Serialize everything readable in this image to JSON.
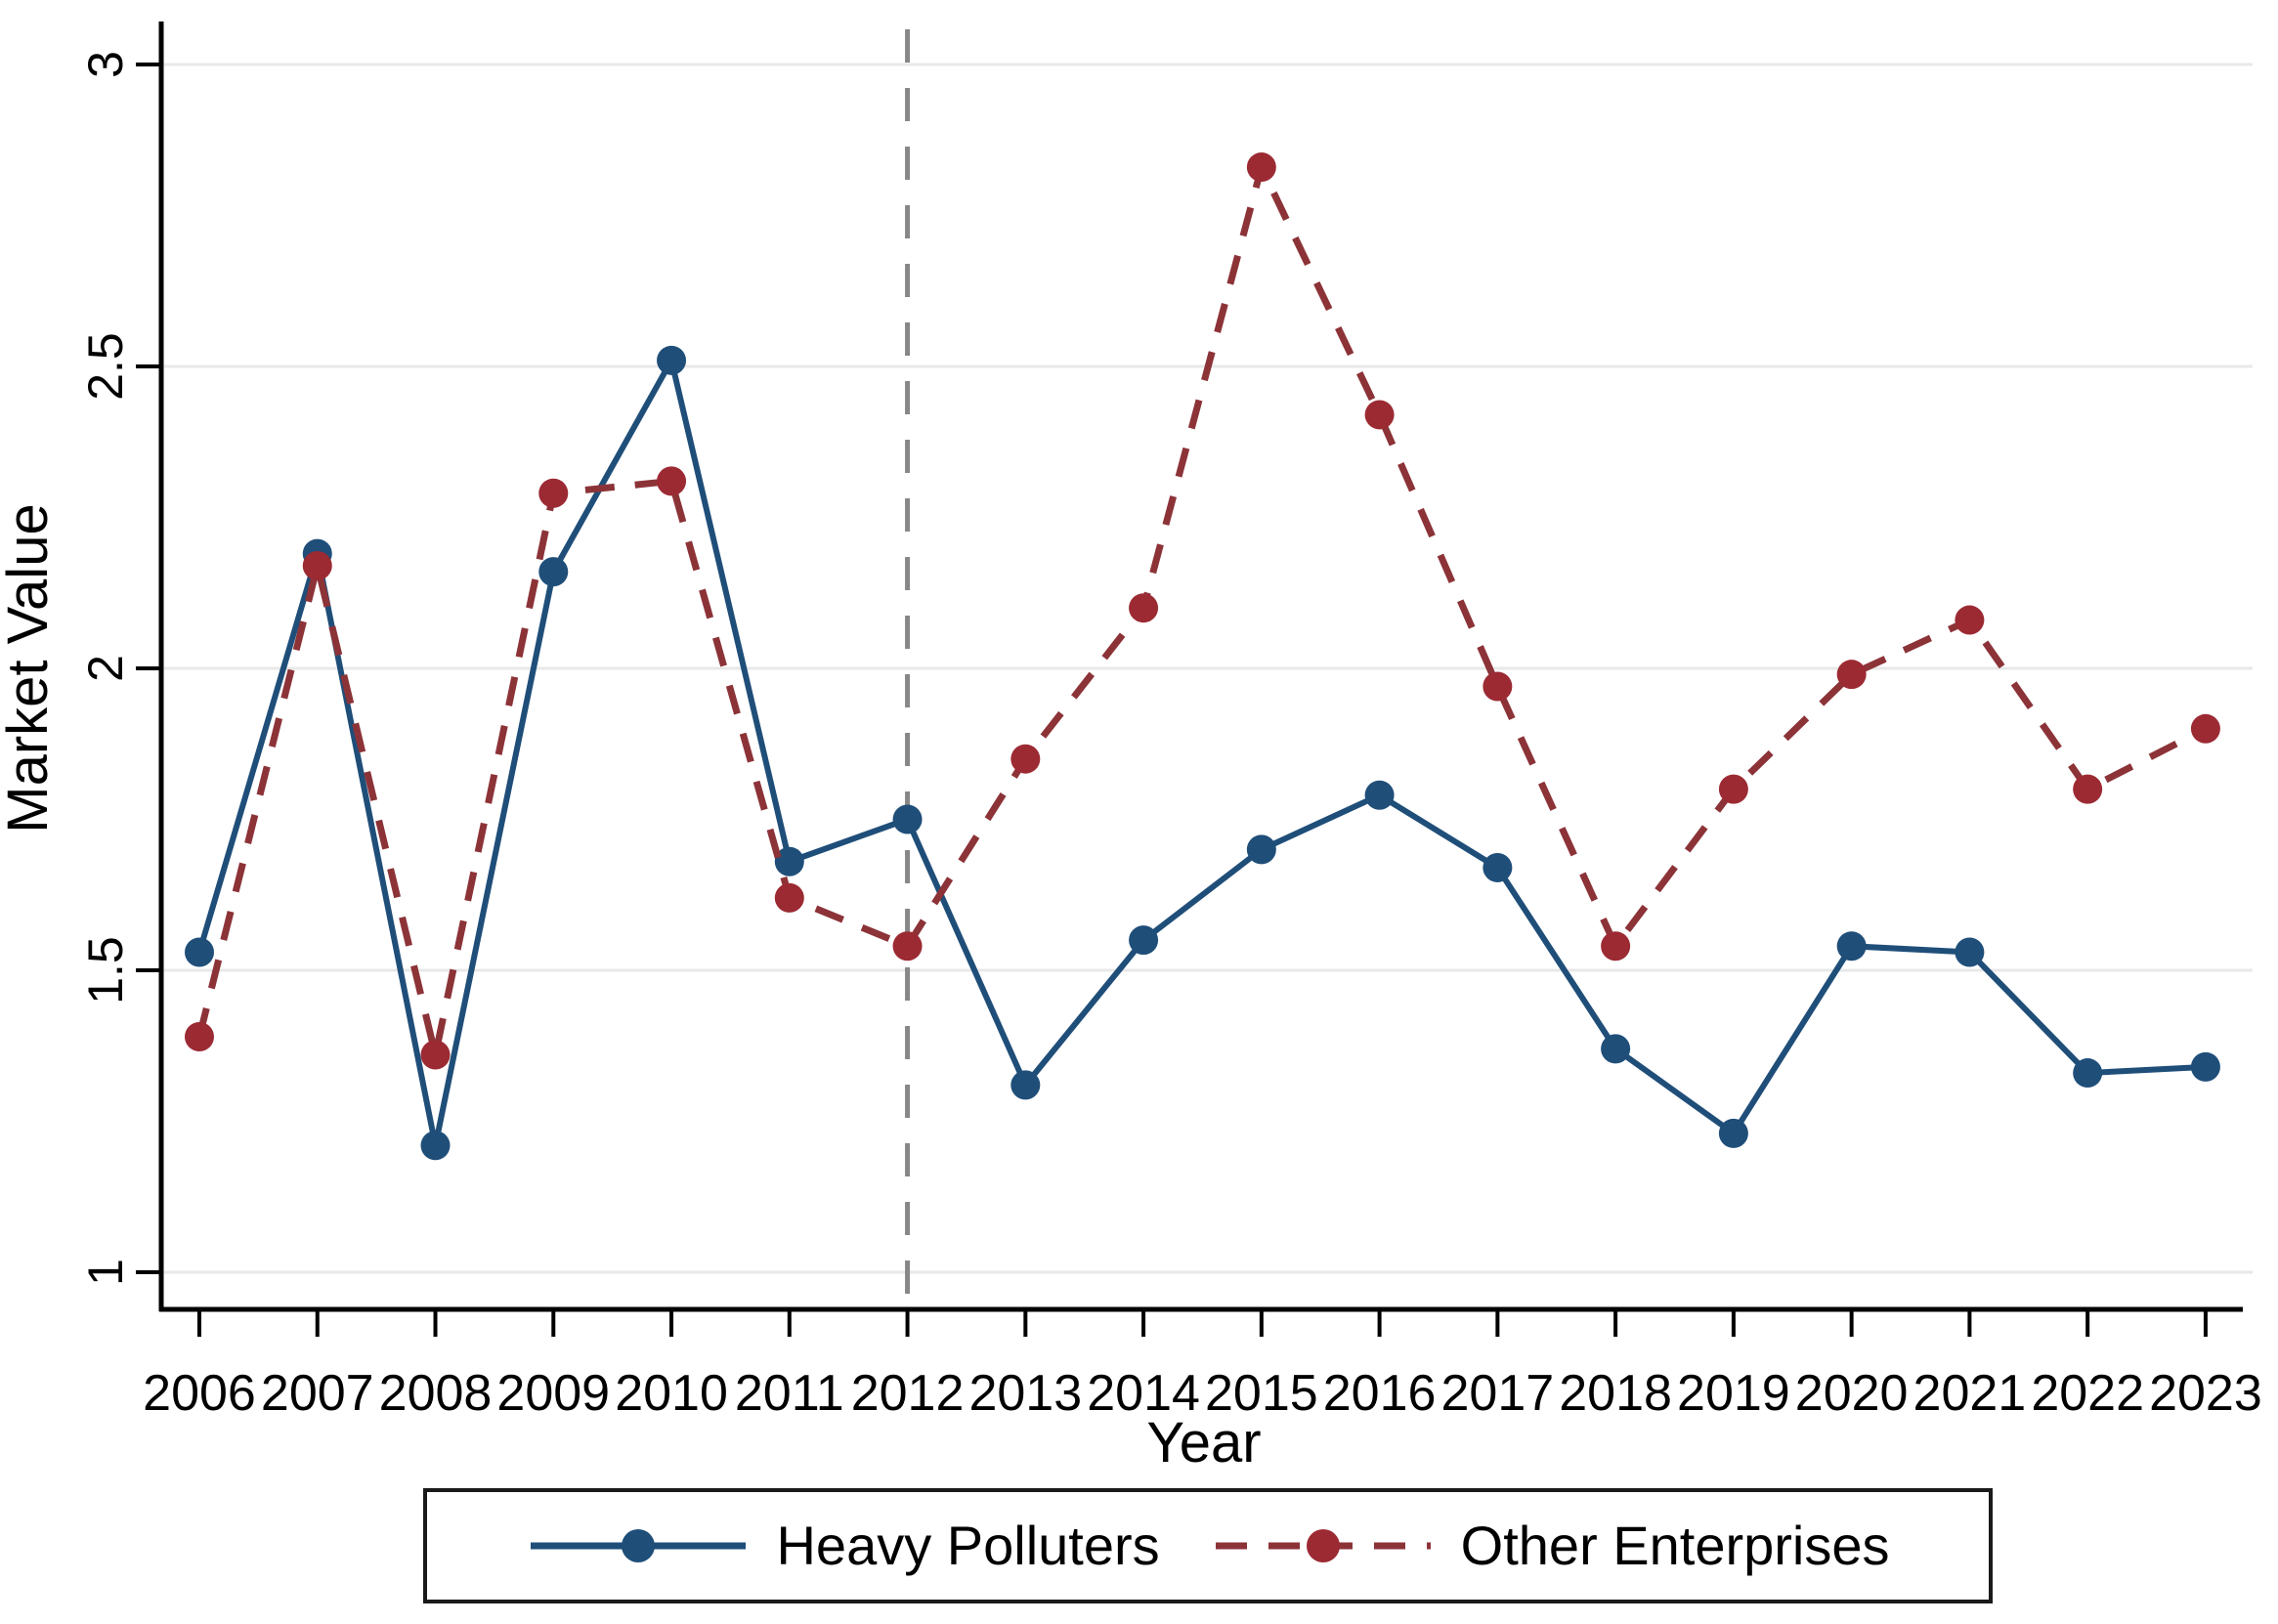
{
  "chart_data": {
    "type": "line",
    "title": "",
    "x": [
      2006,
      2007,
      2008,
      2009,
      2010,
      2011,
      2012,
      2013,
      2014,
      2015,
      2016,
      2017,
      2018,
      2019,
      2020,
      2021,
      2022,
      2023
    ],
    "series": [
      {
        "name": "Heavy Polluters",
        "line_style": "solid",
        "color": "#1f4e79",
        "marker": "circle",
        "values": [
          1.53,
          2.19,
          1.21,
          2.16,
          2.51,
          1.68,
          1.75,
          1.31,
          1.55,
          1.7,
          1.79,
          1.67,
          1.37,
          1.23,
          1.54,
          1.53,
          1.33,
          1.34
        ]
      },
      {
        "name": "Other Enterprises",
        "line_style": "dashed",
        "color": "#9c2a33",
        "line_color": "#8c3338",
        "marker": "circle",
        "values": [
          1.39,
          2.17,
          1.36,
          2.29,
          2.31,
          1.62,
          1.54,
          1.85,
          2.1,
          2.83,
          2.42,
          1.97,
          1.54,
          1.8,
          1.99,
          2.08,
          1.8,
          1.9
        ]
      }
    ],
    "xlabel": "Year",
    "ylabel": "Market Value",
    "ylim": [
      1,
      3
    ],
    "y_ticks": [
      1,
      1.5,
      2,
      2.5,
      3
    ],
    "x_tick_labels": [
      "2006",
      "2007",
      "2008",
      "2009",
      "2010",
      "2011",
      "2012",
      "2013",
      "2014",
      "2015",
      "2016",
      "2017",
      "2018",
      "2019",
      "2020",
      "2021",
      "2022",
      "2023"
    ],
    "reference_line": {
      "x": 2012,
      "style": "dashed",
      "color": "#878787"
    },
    "grid": "horizontal",
    "gridline_color": "#e8e8e8",
    "axis_color": "#000000",
    "legend_position": "bottom",
    "legend_border": true
  }
}
